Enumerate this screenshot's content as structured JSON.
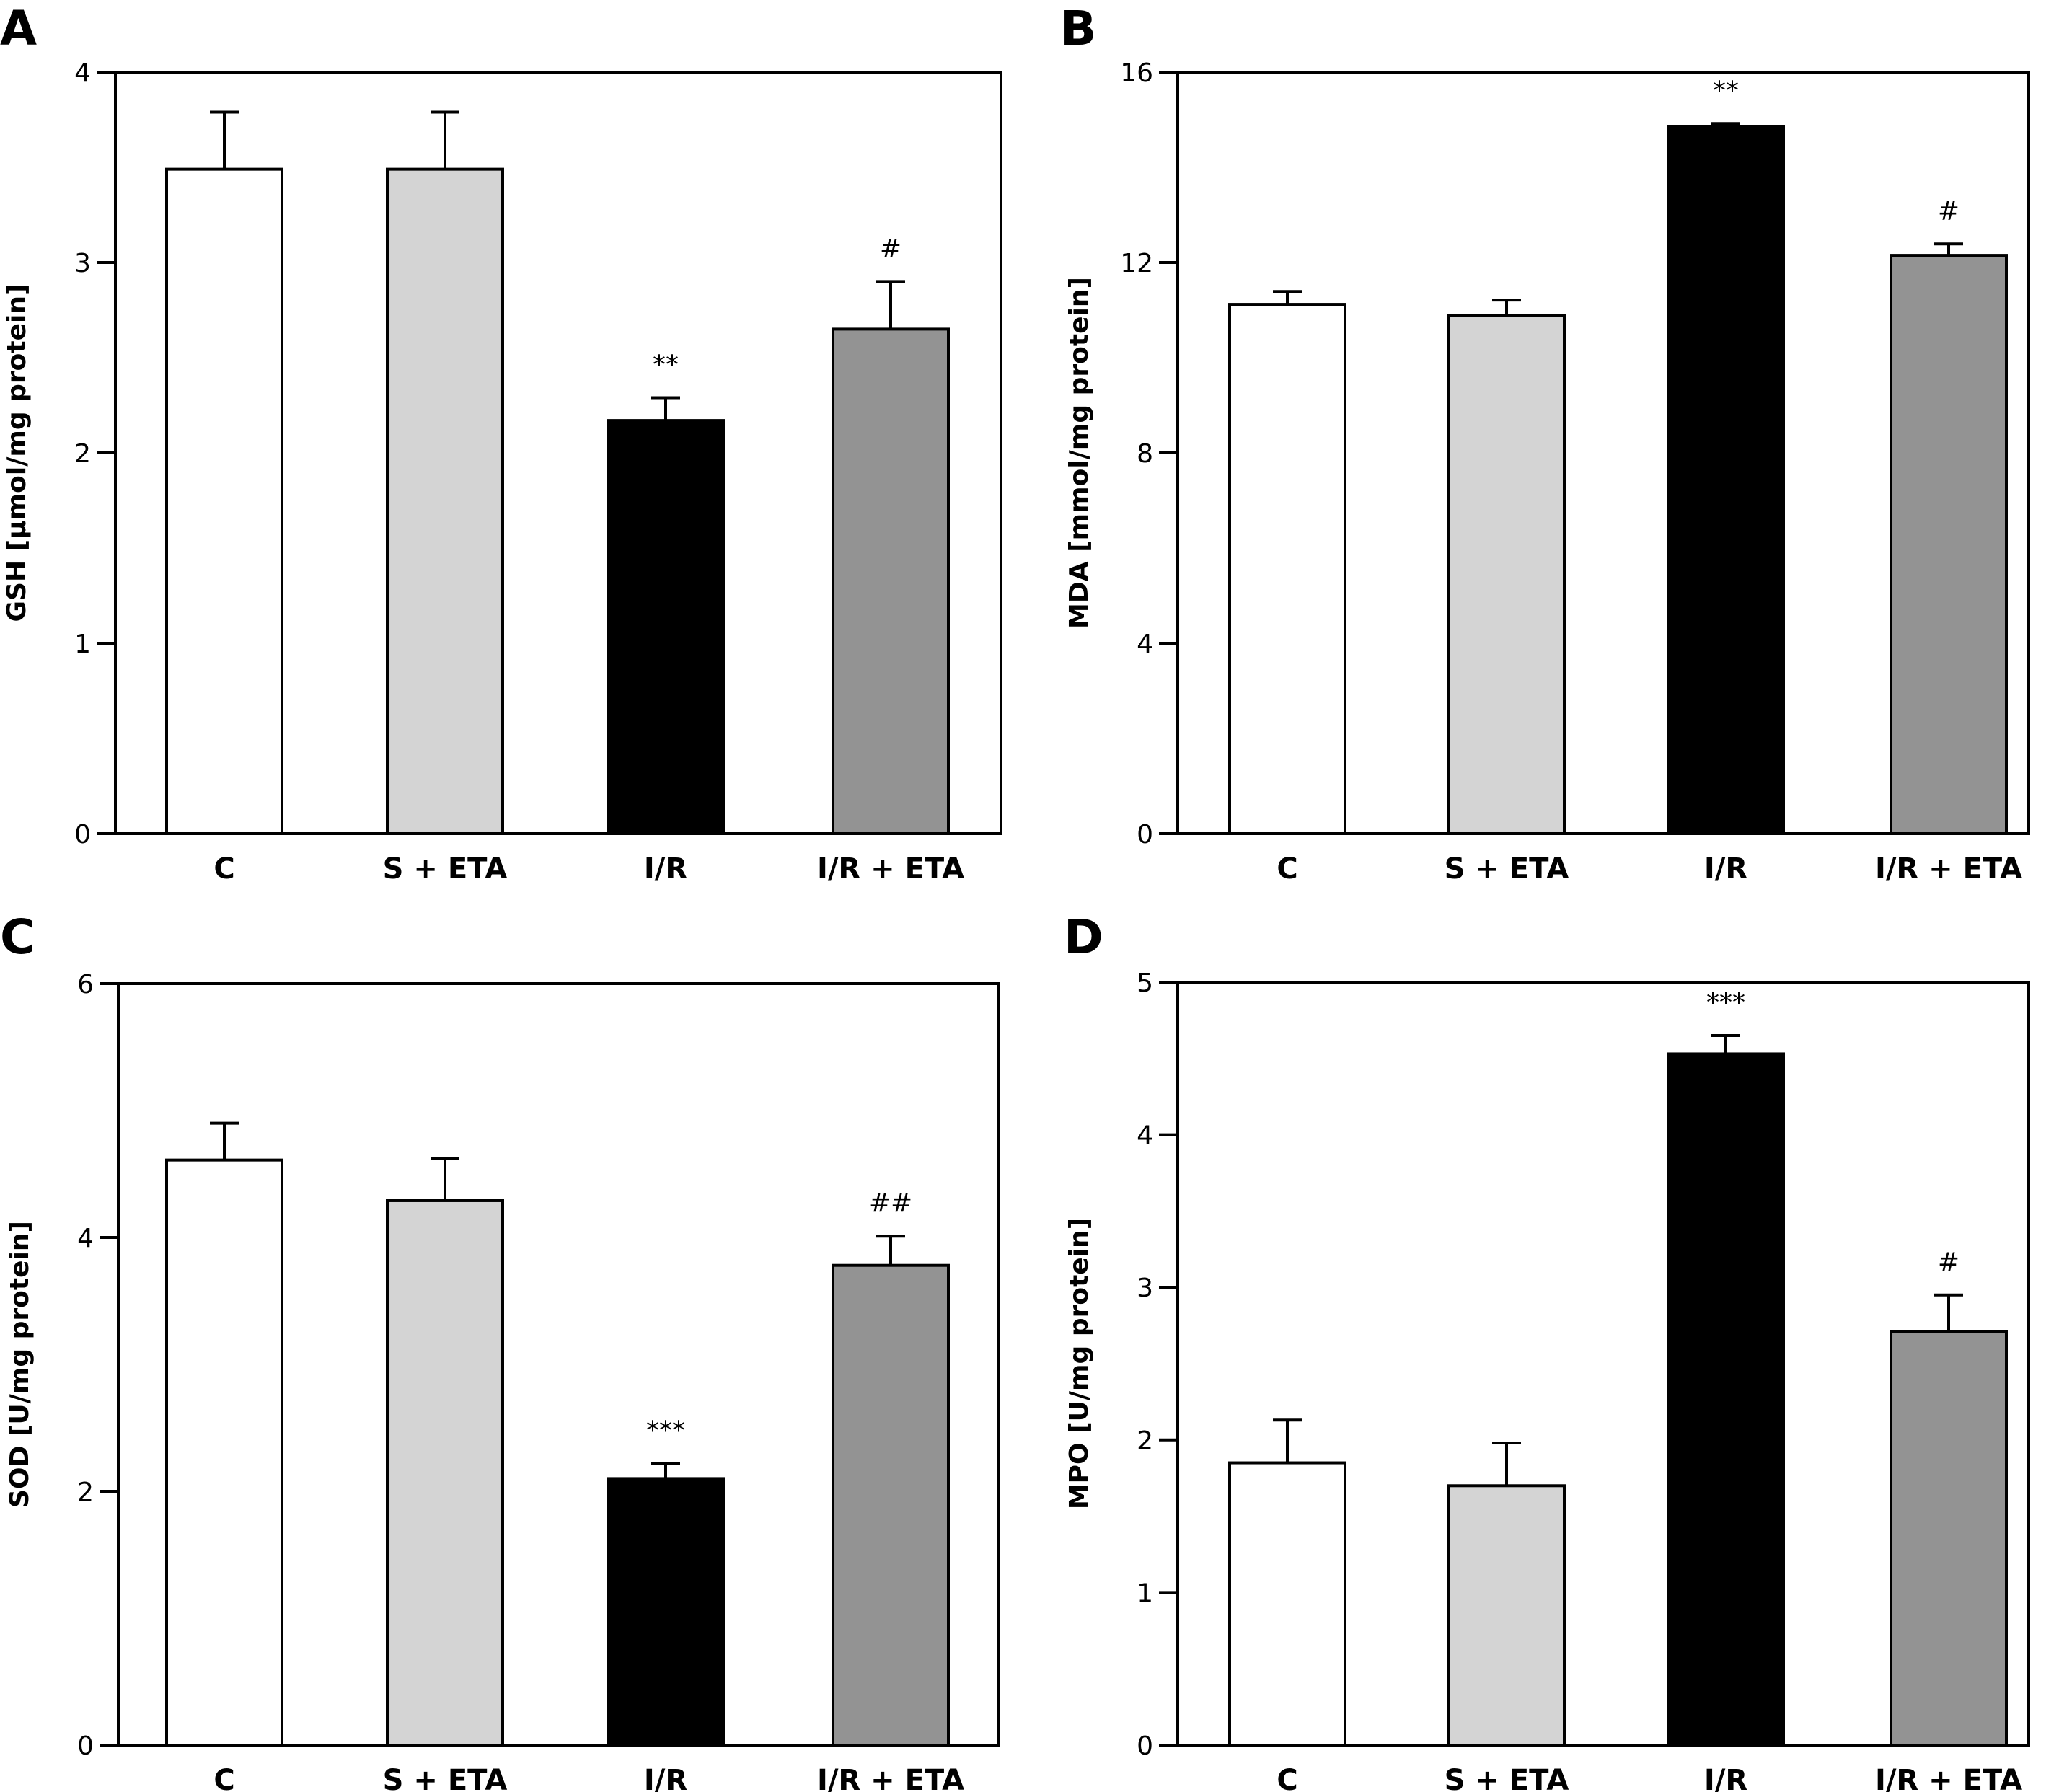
{
  "categories": [
    "C",
    "S + ETA",
    "I/R",
    "I/R + ETA"
  ],
  "bar_colors": [
    "#ffffff",
    "#d4d4d4",
    "#000000",
    "#939393"
  ],
  "chart_data": [
    {
      "panel": "A",
      "type": "bar",
      "title": "",
      "xlabel": "",
      "ylabel": "GSH [µmol/mg protein]",
      "categories": [
        "C",
        "S + ETA",
        "I/R",
        "I/R + ETA"
      ],
      "values": [
        3.49,
        3.49,
        2.17,
        2.65
      ],
      "error_upper": [
        3.79,
        3.79,
        2.29,
        2.9
      ],
      "annotations": [
        "",
        "",
        "**",
        "#"
      ],
      "ylim": [
        0,
        4
      ],
      "yticks": [
        0,
        1,
        2,
        3,
        4
      ],
      "grid": false
    },
    {
      "panel": "B",
      "type": "bar",
      "title": "",
      "xlabel": "",
      "ylabel": "MDA [mmol/mg protein]",
      "categories": [
        "C",
        "S + ETA",
        "I/R",
        "I/R + ETA"
      ],
      "values": [
        11.12,
        10.89,
        14.86,
        12.15
      ],
      "error_upper": [
        11.39,
        11.21,
        14.92,
        12.39
      ],
      "annotations": [
        "",
        "",
        "**",
        "#"
      ],
      "ylim": [
        0,
        16
      ],
      "yticks": [
        0,
        4,
        8,
        12,
        16
      ],
      "grid": false
    },
    {
      "panel": "C",
      "type": "bar",
      "title": "",
      "xlabel": "",
      "ylabel": "SOD [U/mg protein]",
      "categories": [
        "C",
        "S + ETA",
        "I/R",
        "I/R + ETA"
      ],
      "values": [
        4.61,
        4.29,
        2.1,
        3.78
      ],
      "error_upper": [
        4.9,
        4.62,
        2.22,
        4.01
      ],
      "annotations": [
        "",
        "",
        "***",
        "##"
      ],
      "ylim": [
        0,
        6
      ],
      "yticks": [
        0,
        2,
        4,
        6
      ],
      "grid": false
    },
    {
      "panel": "D",
      "type": "bar",
      "title": "",
      "xlabel": "",
      "ylabel": "MPO [U/mg protein]",
      "categories": [
        "C",
        "S + ETA",
        "I/R",
        "I/R + ETA"
      ],
      "values": [
        1.85,
        1.7,
        4.53,
        2.71
      ],
      "error_upper": [
        2.13,
        1.98,
        4.65,
        2.95
      ],
      "annotations": [
        "",
        "",
        "***",
        "#"
      ],
      "ylim": [
        0,
        5
      ],
      "yticks": [
        0,
        1,
        2,
        3,
        4,
        5
      ],
      "grid": false
    }
  ]
}
